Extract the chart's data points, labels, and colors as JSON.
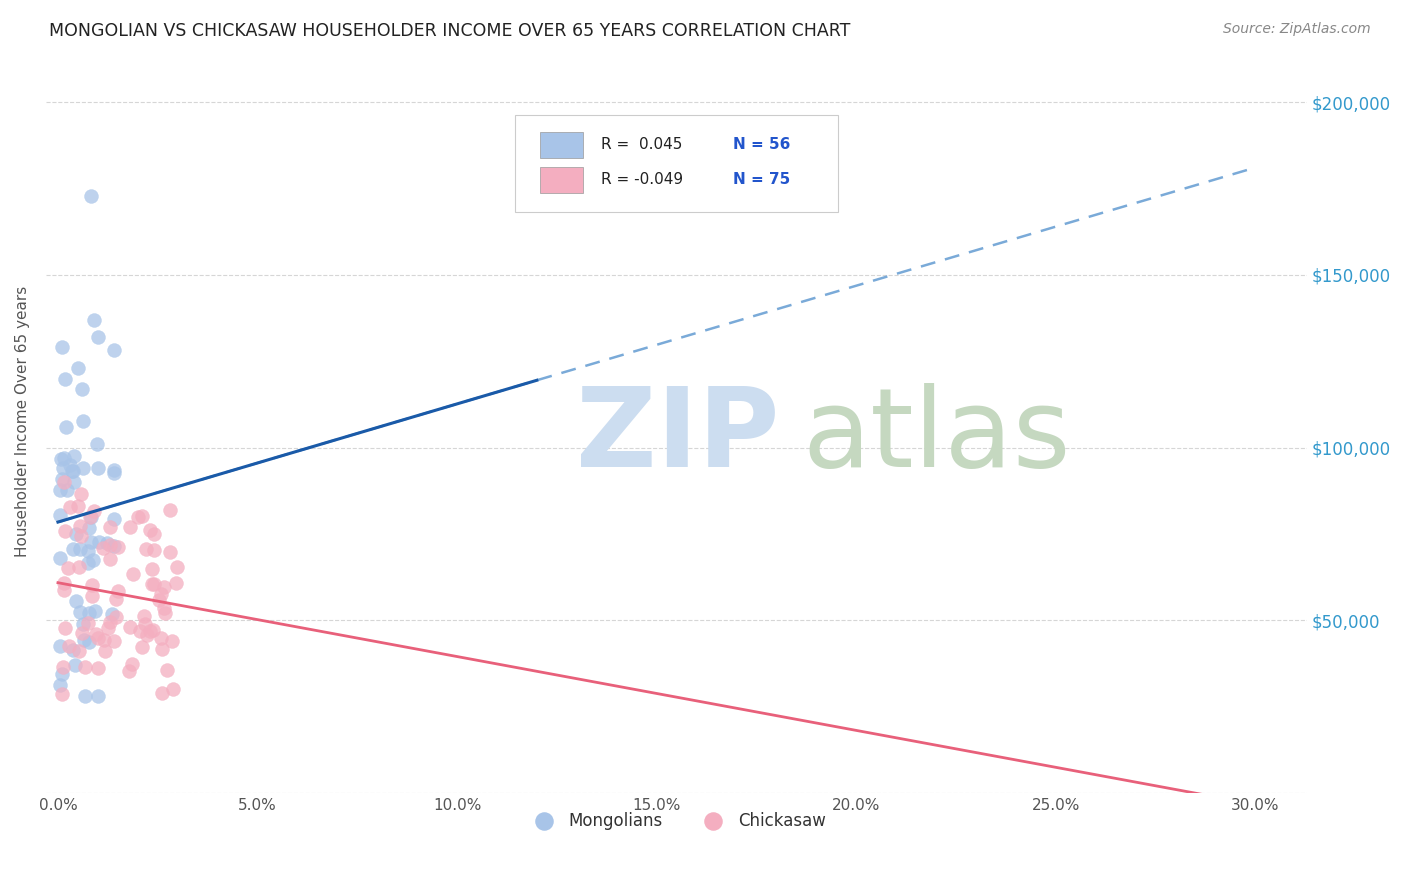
{
  "title": "MONGOLIAN VS CHICKASAW HOUSEHOLDER INCOME OVER 65 YEARS CORRELATION CHART",
  "source": "Source: ZipAtlas.com",
  "ylabel": "Householder Income Over 65 years",
  "xlabel_ticks": [
    "0.0%",
    "5.0%",
    "10.0%",
    "15.0%",
    "20.0%",
    "25.0%",
    "30.0%"
  ],
  "xlim": [
    -0.003,
    0.313
  ],
  "ylim": [
    0,
    215000
  ],
  "ytick_vals": [
    0,
    50000,
    100000,
    150000,
    200000
  ],
  "ytick_labels_right": [
    "",
    "$50,000",
    "$100,000",
    "$150,000",
    "$200,000"
  ],
  "mongolian_color": "#a8c4e8",
  "chickasaw_color": "#f4aec0",
  "mongolian_line_color": "#1a5aa8",
  "chickasaw_line_color": "#e8607a",
  "mongolian_dashed_color": "#7aaad8",
  "mongolian_R": 0.045,
  "mongolian_N": 56,
  "chickasaw_R": -0.049,
  "chickasaw_N": 75,
  "legend_R1": "R =  0.045",
  "legend_N1": "N = 56",
  "legend_R2": "R = -0.049",
  "legend_N2": "N = 75",
  "background_color": "#ffffff",
  "grid_color": "#cccccc",
  "tick_color": "#555555",
  "right_tick_color": "#3399cc",
  "watermark_zip_color": "#ddeeff",
  "watermark_atlas_color": "#ccddc8"
}
